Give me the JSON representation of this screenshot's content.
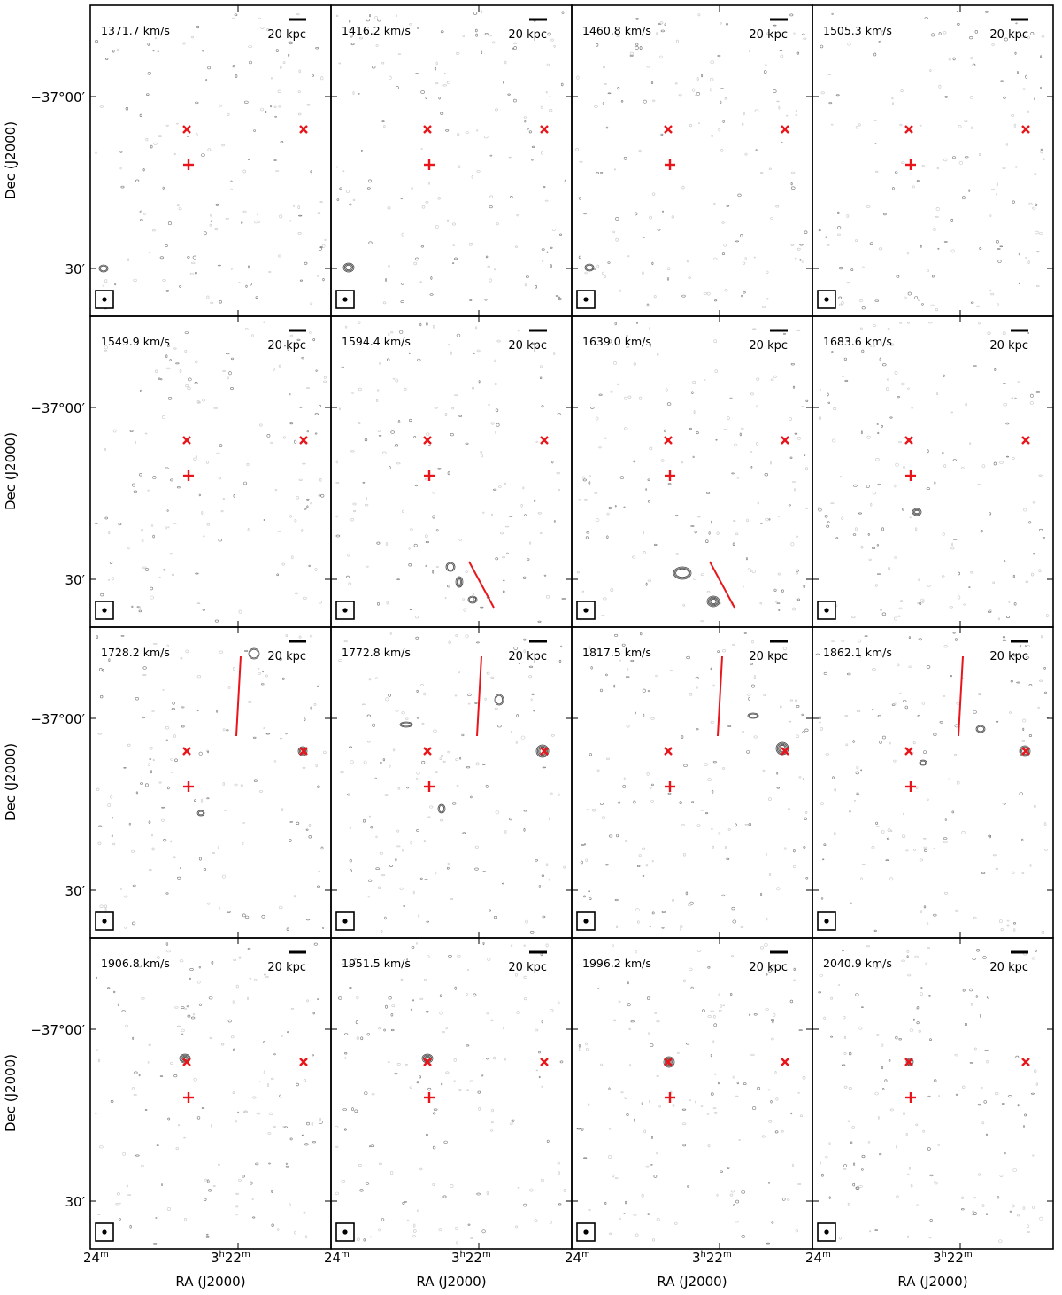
{
  "figure": {
    "ra_axis_label": "RA (J2000)",
    "dec_axis_label": "Dec (J2000)",
    "ra_ticks": [
      "24$^m$",
      "3$^h$22$^m$"
    ],
    "ra_tick_text": [
      "24",
      "m",
      "3",
      "h",
      "22",
      "m"
    ],
    "dec_ticks": [
      "−37°00′",
      "30′"
    ],
    "scale_bar_label": "20 kpc",
    "colors": {
      "marker": "#e8161b",
      "contour": "#555555",
      "frame": "#000000"
    }
  },
  "panels": [
    {
      "velocity": "1371.7 km/s",
      "has_line": false,
      "line_orientation": ""
    },
    {
      "velocity": "1416.2 km/s",
      "has_line": false,
      "line_orientation": ""
    },
    {
      "velocity": "1460.8 km/s",
      "has_line": false,
      "line_orientation": ""
    },
    {
      "velocity": "1505.3 km/s",
      "has_line": false,
      "line_orientation": ""
    },
    {
      "velocity": "1549.9 km/s",
      "has_line": false,
      "line_orientation": ""
    },
    {
      "velocity": "1594.4 km/s",
      "has_line": true,
      "line_orientation": "lower-diagonal"
    },
    {
      "velocity": "1639.0 km/s",
      "has_line": true,
      "line_orientation": "lower-diagonal"
    },
    {
      "velocity": "1683.6 km/s",
      "has_line": false,
      "line_orientation": ""
    },
    {
      "velocity": "1728.2 km/s",
      "has_line": true,
      "line_orientation": "upper-vertical"
    },
    {
      "velocity": "1772.8 km/s",
      "has_line": true,
      "line_orientation": "upper-vertical"
    },
    {
      "velocity": "1817.5 km/s",
      "has_line": true,
      "line_orientation": "upper-vertical"
    },
    {
      "velocity": "1862.1 km/s",
      "has_line": true,
      "line_orientation": "upper-vertical"
    },
    {
      "velocity": "1906.8 km/s",
      "has_line": false,
      "line_orientation": ""
    },
    {
      "velocity": "1951.5 km/s",
      "has_line": false,
      "line_orientation": ""
    },
    {
      "velocity": "1996.2 km/s",
      "has_line": false,
      "line_orientation": ""
    },
    {
      "velocity": "2040.9 km/s",
      "has_line": false,
      "line_orientation": ""
    }
  ]
}
